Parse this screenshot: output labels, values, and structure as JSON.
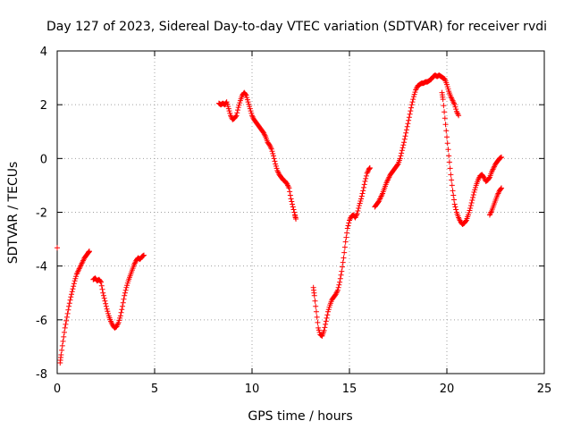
{
  "chart_data": {
    "type": "scatter",
    "title": "Day 127 of 2023, Sidereal Day-to-day VTEC variation (SDTVAR) for receiver rvdi",
    "xlabel": "GPS time / hours",
    "ylabel": "SDTVAR / TECUs",
    "xlim": [
      0,
      25
    ],
    "ylim": [
      -8,
      4
    ],
    "xticks": [
      "0",
      "5",
      "10",
      "15",
      "20",
      "25"
    ],
    "yticks": [
      "-8",
      "-6",
      "-4",
      "-2",
      "0",
      "2",
      "4"
    ],
    "grid": true,
    "marker": "plus",
    "color": "#ff0000",
    "series": [
      {
        "segments": [
          [
            [
              0.0,
              -3.32
            ]
          ],
          [
            [
              0.15,
              -7.6
            ],
            [
              0.2,
              -7.3
            ],
            [
              0.3,
              -6.8
            ],
            [
              0.4,
              -6.3
            ],
            [
              0.5,
              -5.9
            ],
            [
              0.6,
              -5.5
            ],
            [
              0.7,
              -5.15
            ],
            [
              0.8,
              -4.85
            ],
            [
              0.9,
              -4.55
            ],
            [
              1.0,
              -4.3
            ],
            [
              1.1,
              -4.15
            ],
            [
              1.2,
              -4.0
            ],
            [
              1.3,
              -3.85
            ],
            [
              1.4,
              -3.7
            ],
            [
              1.5,
              -3.6
            ],
            [
              1.6,
              -3.5
            ],
            [
              1.65,
              -3.45
            ]
          ],
          [
            [
              1.85,
              -4.5
            ],
            [
              1.95,
              -4.45
            ],
            [
              2.05,
              -4.55
            ],
            [
              2.15,
              -4.5
            ],
            [
              2.25,
              -4.6
            ],
            [
              2.35,
              -5.0
            ],
            [
              2.45,
              -5.3
            ],
            [
              2.55,
              -5.6
            ],
            [
              2.65,
              -5.85
            ],
            [
              2.75,
              -6.05
            ],
            [
              2.85,
              -6.2
            ],
            [
              2.95,
              -6.3
            ],
            [
              3.05,
              -6.25
            ],
            [
              3.15,
              -6.1
            ],
            [
              3.25,
              -5.85
            ],
            [
              3.35,
              -5.5
            ],
            [
              3.45,
              -5.1
            ],
            [
              3.55,
              -4.8
            ],
            [
              3.65,
              -4.55
            ],
            [
              3.75,
              -4.35
            ],
            [
              3.85,
              -4.15
            ],
            [
              3.95,
              -3.95
            ],
            [
              4.05,
              -3.8
            ],
            [
              4.15,
              -3.7
            ],
            [
              4.25,
              -3.75
            ],
            [
              4.35,
              -3.65
            ],
            [
              4.45,
              -3.6
            ]
          ],
          [
            [
              8.3,
              2.05
            ],
            [
              8.4,
              2.0
            ],
            [
              8.5,
              2.05
            ],
            [
              8.6,
              2.0
            ],
            [
              8.7,
              2.1
            ],
            [
              8.8,
              1.85
            ],
            [
              8.9,
              1.6
            ],
            [
              9.0,
              1.45
            ],
            [
              9.1,
              1.5
            ],
            [
              9.2,
              1.6
            ],
            [
              9.3,
              1.9
            ],
            [
              9.4,
              2.15
            ],
            [
              9.5,
              2.35
            ],
            [
              9.6,
              2.45
            ],
            [
              9.7,
              2.35
            ],
            [
              9.8,
              2.1
            ],
            [
              9.9,
              1.85
            ],
            [
              10.0,
              1.6
            ],
            [
              10.1,
              1.45
            ],
            [
              10.2,
              1.35
            ],
            [
              10.3,
              1.25
            ],
            [
              10.4,
              1.15
            ],
            [
              10.5,
              1.05
            ],
            [
              10.6,
              0.95
            ],
            [
              10.7,
              0.8
            ],
            [
              10.8,
              0.6
            ],
            [
              10.9,
              0.5
            ],
            [
              11.0,
              0.35
            ],
            [
              11.1,
              0.1
            ],
            [
              11.2,
              -0.2
            ],
            [
              11.3,
              -0.45
            ],
            [
              11.4,
              -0.6
            ],
            [
              11.5,
              -0.7
            ],
            [
              11.6,
              -0.8
            ],
            [
              11.7,
              -0.85
            ],
            [
              11.8,
              -0.95
            ],
            [
              11.9,
              -1.1
            ],
            [
              12.0,
              -1.5
            ],
            [
              12.1,
              -1.8
            ],
            [
              12.2,
              -2.1
            ],
            [
              12.25,
              -2.25
            ]
          ],
          [
            [
              13.15,
              -4.8
            ],
            [
              13.2,
              -5.1
            ],
            [
              13.3,
              -5.7
            ],
            [
              13.4,
              -6.3
            ],
            [
              13.5,
              -6.55
            ],
            [
              13.6,
              -6.6
            ],
            [
              13.7,
              -6.4
            ],
            [
              13.8,
              -6.05
            ],
            [
              13.9,
              -5.7
            ],
            [
              14.0,
              -5.45
            ],
            [
              14.1,
              -5.25
            ],
            [
              14.2,
              -5.15
            ],
            [
              14.3,
              -5.05
            ],
            [
              14.4,
              -4.9
            ],
            [
              14.5,
              -4.6
            ],
            [
              14.6,
              -4.2
            ],
            [
              14.7,
              -3.7
            ],
            [
              14.8,
              -3.1
            ],
            [
              14.9,
              -2.6
            ],
            [
              15.0,
              -2.3
            ],
            [
              15.1,
              -2.15
            ],
            [
              15.2,
              -2.1
            ],
            [
              15.3,
              -2.2
            ],
            [
              15.4,
              -2.05
            ],
            [
              15.5,
              -1.75
            ],
            [
              15.6,
              -1.5
            ],
            [
              15.7,
              -1.2
            ],
            [
              15.8,
              -0.85
            ],
            [
              15.9,
              -0.55
            ],
            [
              16.0,
              -0.4
            ],
            [
              16.05,
              -0.35
            ]
          ],
          [
            [
              16.3,
              -1.8
            ],
            [
              16.4,
              -1.7
            ],
            [
              16.5,
              -1.6
            ],
            [
              16.6,
              -1.45
            ],
            [
              16.7,
              -1.3
            ],
            [
              16.8,
              -1.1
            ],
            [
              16.9,
              -0.9
            ],
            [
              17.0,
              -0.75
            ],
            [
              17.1,
              -0.6
            ],
            [
              17.2,
              -0.5
            ],
            [
              17.3,
              -0.4
            ],
            [
              17.4,
              -0.3
            ],
            [
              17.5,
              -0.2
            ],
            [
              17.6,
              0.0
            ],
            [
              17.7,
              0.3
            ],
            [
              17.8,
              0.6
            ],
            [
              17.9,
              0.95
            ],
            [
              18.0,
              1.3
            ],
            [
              18.1,
              1.65
            ],
            [
              18.2,
              2.0
            ],
            [
              18.3,
              2.3
            ],
            [
              18.4,
              2.55
            ],
            [
              18.5,
              2.7
            ],
            [
              18.6,
              2.75
            ],
            [
              18.7,
              2.8
            ],
            [
              18.8,
              2.8
            ],
            [
              18.9,
              2.85
            ],
            [
              19.0,
              2.85
            ],
            [
              19.1,
              2.9
            ],
            [
              19.2,
              2.95
            ],
            [
              19.3,
              3.05
            ],
            [
              19.4,
              3.1
            ],
            [
              19.5,
              3.05
            ],
            [
              19.6,
              3.1
            ],
            [
              19.7,
              3.05
            ],
            [
              19.8,
              3.0
            ],
            [
              19.9,
              2.95
            ],
            [
              20.0,
              2.75
            ],
            [
              20.1,
              2.5
            ],
            [
              20.2,
              2.3
            ],
            [
              20.3,
              2.15
            ],
            [
              20.4,
              2.0
            ],
            [
              20.5,
              1.75
            ],
            [
              20.6,
              1.6
            ]
          ],
          [
            [
              19.75,
              2.45
            ],
            [
              19.8,
              2.2
            ],
            [
              19.9,
              1.5
            ],
            [
              20.0,
              0.8
            ],
            [
              20.1,
              0.1
            ],
            [
              20.2,
              -0.6
            ],
            [
              20.3,
              -1.2
            ],
            [
              20.4,
              -1.7
            ],
            [
              20.5,
              -2.0
            ],
            [
              20.6,
              -2.2
            ],
            [
              20.7,
              -2.35
            ],
            [
              20.8,
              -2.45
            ],
            [
              20.9,
              -2.4
            ],
            [
              21.0,
              -2.3
            ],
            [
              21.1,
              -2.1
            ],
            [
              21.2,
              -1.85
            ],
            [
              21.3,
              -1.55
            ],
            [
              21.4,
              -1.25
            ],
            [
              21.5,
              -1.0
            ],
            [
              21.6,
              -0.8
            ],
            [
              21.7,
              -0.65
            ],
            [
              21.8,
              -0.6
            ],
            [
              21.9,
              -0.7
            ],
            [
              22.0,
              -0.85
            ],
            [
              22.1,
              -0.8
            ],
            [
              22.2,
              -0.7
            ],
            [
              22.3,
              -0.5
            ],
            [
              22.4,
              -0.35
            ],
            [
              22.5,
              -0.2
            ],
            [
              22.6,
              -0.1
            ],
            [
              22.7,
              0.0
            ],
            [
              22.8,
              0.05
            ]
          ],
          [
            [
              22.2,
              -2.1
            ],
            [
              22.3,
              -1.95
            ],
            [
              22.4,
              -1.75
            ],
            [
              22.5,
              -1.55
            ],
            [
              22.6,
              -1.35
            ],
            [
              22.7,
              -1.2
            ],
            [
              22.8,
              -1.1
            ]
          ]
        ]
      }
    ]
  }
}
